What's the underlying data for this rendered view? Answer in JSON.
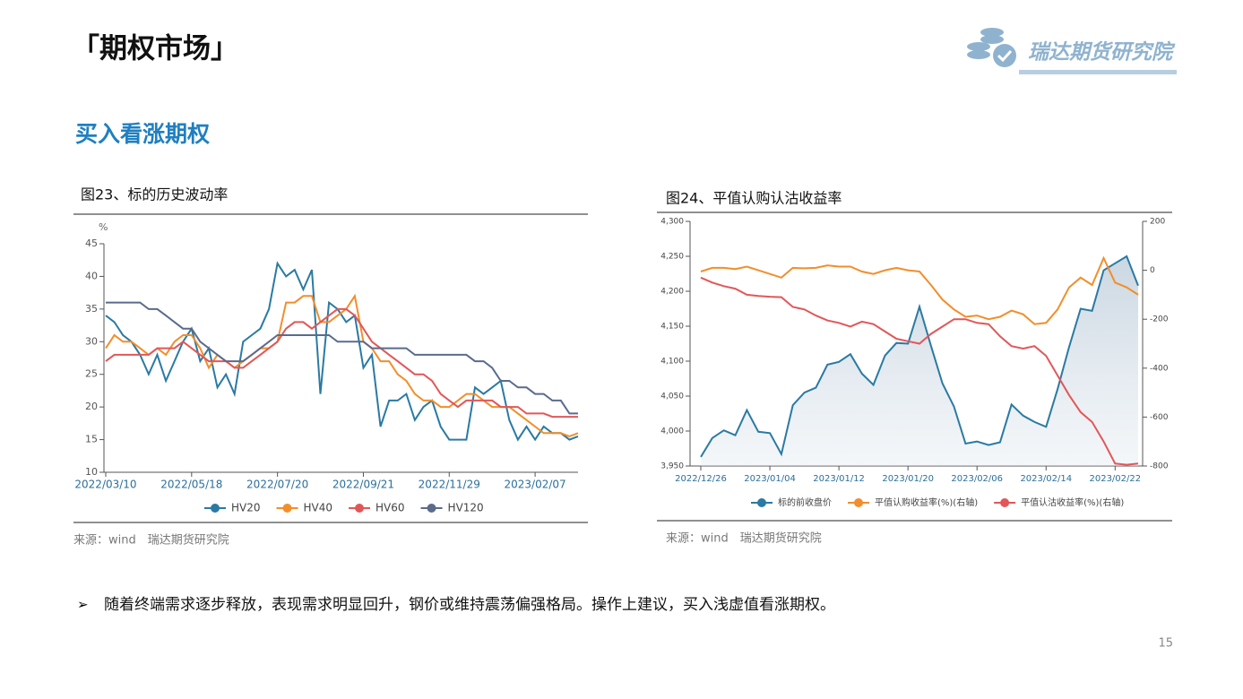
{
  "header": {
    "title": "「期权市场」",
    "logo_text": "瑞达期货研究院"
  },
  "section_title": "买入看涨期权",
  "chart_data": [
    {
      "type": "line",
      "title": "图23、标的历史波动率",
      "y_label": "%",
      "categories": [
        "2022/03/10",
        null,
        null,
        null,
        null,
        null,
        null,
        null,
        null,
        null,
        "2022/05/18",
        null,
        null,
        null,
        null,
        null,
        null,
        null,
        null,
        null,
        "2022/07/20",
        null,
        null,
        null,
        null,
        null,
        null,
        null,
        null,
        null,
        "2022/09/21",
        null,
        null,
        null,
        null,
        null,
        null,
        null,
        null,
        null,
        "2022/11/29",
        null,
        null,
        null,
        null,
        null,
        null,
        null,
        null,
        null,
        "2023/02/07",
        null,
        null,
        null,
        null,
        null
      ],
      "series": [
        {
          "name": "HV20",
          "color": "#2a7aa3",
          "values": [
            34,
            33,
            31,
            30,
            28,
            25,
            28,
            24,
            27,
            30,
            32,
            27,
            29,
            23,
            25,
            22,
            30,
            31,
            32,
            35,
            42,
            40,
            41,
            38,
            41,
            22,
            36,
            35,
            33,
            34,
            26,
            28,
            17,
            21,
            21,
            22,
            18,
            20,
            21,
            17,
            15,
            15,
            15,
            23,
            22,
            23,
            24,
            18,
            15,
            17,
            15,
            17,
            16,
            16,
            15,
            15.5
          ]
        },
        {
          "name": "HV40",
          "color": "#f28e2b",
          "values": [
            29,
            31,
            30,
            30,
            29,
            28,
            29,
            28,
            30,
            31,
            31,
            29,
            26,
            28,
            27,
            26,
            27,
            28,
            29,
            29,
            30,
            36,
            36,
            37,
            37,
            33,
            33,
            34,
            35,
            37,
            30,
            29,
            27,
            27,
            25,
            24,
            22,
            21,
            21,
            20,
            20,
            21,
            22,
            22,
            21,
            20,
            20,
            20,
            19,
            18,
            17,
            16,
            16,
            16,
            15.5,
            16
          ]
        },
        {
          "name": "HV60",
          "color": "#e15759",
          "values": [
            27,
            28,
            28,
            28,
            28,
            28,
            29,
            29,
            29,
            30,
            29,
            28,
            27,
            27,
            27,
            26,
            26,
            27,
            28,
            29,
            30,
            32,
            33,
            33,
            32,
            33,
            34,
            35,
            35,
            34,
            32,
            30,
            29,
            28,
            27,
            26,
            25,
            25,
            24,
            22,
            21,
            20,
            21,
            21,
            21,
            21,
            20,
            20,
            20,
            19,
            19,
            19,
            18.5,
            18.5,
            18.5,
            18.5
          ]
        },
        {
          "name": "HV120",
          "color": "#5b6b8c",
          "values": [
            36,
            36,
            36,
            36,
            36,
            35,
            35,
            34,
            33,
            32,
            32,
            30,
            29,
            28,
            27,
            27,
            27,
            28,
            29,
            30,
            31,
            31,
            31,
            31,
            31,
            31,
            31,
            30,
            30,
            30,
            30,
            29,
            29,
            29,
            29,
            29,
            28,
            28,
            28,
            28,
            28,
            28,
            28,
            27,
            27,
            26,
            24,
            24,
            23,
            23,
            22,
            22,
            21,
            21,
            19,
            19
          ]
        }
      ],
      "ylim": [
        10,
        45
      ],
      "yticks": [
        10,
        15,
        20,
        25,
        30,
        35,
        40,
        45
      ],
      "grid": false,
      "legend": "bottom",
      "source": "来源：wind　瑞达期货研究院"
    },
    {
      "type": "line",
      "title": "图24、平值认购认沽收益率",
      "categories": [
        "2022/12/26",
        null,
        null,
        null,
        null,
        null,
        "2023/01/04",
        null,
        null,
        null,
        null,
        null,
        "2023/01/12",
        null,
        null,
        null,
        null,
        null,
        "2023/01/20",
        null,
        null,
        null,
        null,
        null,
        "2023/02/06",
        null,
        null,
        null,
        null,
        null,
        "2023/02/14",
        null,
        null,
        null,
        null,
        null,
        "2023/02/22",
        null,
        null
      ],
      "series": [
        {
          "name": "标的前收盘价",
          "color": "#2a7aa3",
          "area": true,
          "values": [
            3963,
            3990,
            4001,
            3994,
            4030,
            3999,
            3997,
            3967,
            4037,
            4055,
            4062,
            4095,
            4099,
            4110,
            4082,
            4066,
            4108,
            4126,
            4125,
            4178,
            4122,
            4068,
            4035,
            3982,
            3985,
            3980,
            3984,
            4038,
            4022,
            4013,
            4006,
            4060,
            4120,
            4175,
            4172,
            4230,
            4240,
            4250,
            4208
          ]
        },
        {
          "name": "平值认购收益率(%)(右轴)",
          "color": "#f28e2b",
          "axis": "y2",
          "values": [
            -5,
            10,
            10,
            5,
            15,
            0,
            -15,
            -30,
            10,
            8,
            10,
            20,
            15,
            15,
            -5,
            -15,
            0,
            10,
            0,
            -5,
            -60,
            -120,
            -160,
            -190,
            -185,
            -200,
            -190,
            -165,
            -180,
            -220,
            -215,
            -160,
            -70,
            -30,
            -60,
            50,
            -50,
            -70,
            -100
          ]
        },
        {
          "name": "平值认沽收益率(%)(右轴)",
          "color": "#e15759",
          "axis": "y2",
          "values": [
            -30,
            -50,
            -65,
            -75,
            -100,
            -105,
            -108,
            -110,
            -150,
            -160,
            -185,
            -205,
            -215,
            -230,
            -210,
            -220,
            -250,
            -280,
            -290,
            -300,
            -260,
            -230,
            -200,
            -200,
            -215,
            -220,
            -270,
            -310,
            -320,
            -310,
            -350,
            -430,
            -510,
            -580,
            -620,
            -700,
            -790,
            -795,
            -790
          ]
        }
      ],
      "ylim": [
        3950,
        4300
      ],
      "yticks": [
        {
          "value": 3950,
          "label": "3,950"
        },
        {
          "value": 4000,
          "label": "4,000"
        },
        {
          "value": 4050,
          "label": "4,050"
        },
        {
          "value": 4100,
          "label": "4,100"
        },
        {
          "value": 4150,
          "label": "4,150"
        },
        {
          "value": 4200,
          "label": "4,200"
        },
        {
          "value": 4250,
          "label": "4,250"
        },
        {
          "value": 4300,
          "label": "4,300"
        }
      ],
      "y2lim": [
        -800,
        200
      ],
      "y2ticks": [
        -800,
        -600,
        -400,
        -200,
        0,
        200
      ],
      "grid": false,
      "legend": "bottom",
      "source": "来源：wind　瑞达期货研究院"
    }
  ],
  "bullet": "随着终端需求逐步释放，表现需求明显回升，钢价或维持震荡偏强格局。操作上建议，买入浅虚值看涨期权。",
  "page_number": "15"
}
